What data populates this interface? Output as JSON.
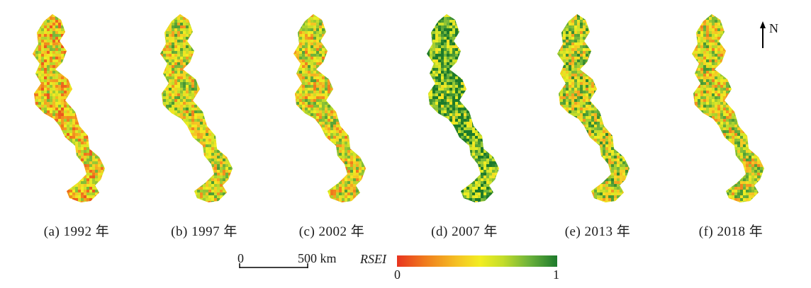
{
  "panels": [
    {
      "caption": "(a) 1992 年",
      "color_bias": 0.45
    },
    {
      "caption": "(b) 1997 年",
      "color_bias": 0.55
    },
    {
      "caption": "(c) 2002 年",
      "color_bias": 0.52
    },
    {
      "caption": "(d) 2007 年",
      "color_bias": 0.8
    },
    {
      "caption": "(e) 2013 年",
      "color_bias": 0.6
    },
    {
      "caption": "(f) 2018 年",
      "color_bias": 0.55
    }
  ],
  "north_arrow": {
    "label": "N"
  },
  "scale_bar": {
    "start_label": "0",
    "end_label": "500 km"
  },
  "legend": {
    "title": "RSEI",
    "min_label": "0",
    "max_label": "1",
    "colors": [
      "#e8341f",
      "#f07d1d",
      "#f5c324",
      "#f2ee22",
      "#c4dd2a",
      "#6fb43b",
      "#1d7a2c"
    ]
  }
}
